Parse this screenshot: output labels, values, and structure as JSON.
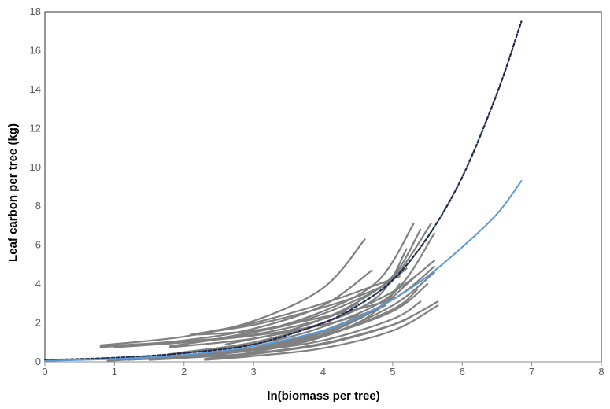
{
  "chart_data": {
    "type": "line",
    "title": "",
    "xlabel": "ln(biomass per tree)",
    "ylabel": "Leaf carbon per tree (kg)",
    "xlim": [
      0,
      8
    ],
    "ylim": [
      0,
      18
    ],
    "x_ticks": [
      "0",
      "1",
      "2",
      "3",
      "4",
      "5",
      "6",
      "7",
      "8"
    ],
    "y_ticks": [
      "0",
      "2",
      "4",
      "6",
      "8",
      "10",
      "12",
      "14",
      "16",
      "18"
    ],
    "grid": false,
    "legend": "none",
    "colors": {
      "individual": "#808080",
      "fitted_blue": "#5b9bd5",
      "fitted_dashed": "#1f2a4d"
    },
    "series": [
      {
        "style": "dashed",
        "color": "#1f2a4d",
        "x": [
          0,
          1,
          2,
          3,
          4,
          4.5,
          5,
          5.5,
          6,
          6.5,
          6.85
        ],
        "y": [
          0.1,
          0.21,
          0.45,
          0.9,
          2.0,
          2.9,
          4.2,
          6.4,
          9.5,
          13.8,
          17.5
        ]
      },
      {
        "style": "solid",
        "color": "#5b9bd5",
        "x": [
          0,
          1,
          2,
          3,
          4,
          4.5,
          5,
          5.5,
          6,
          6.5,
          6.85
        ],
        "y": [
          0.05,
          0.15,
          0.35,
          0.8,
          1.6,
          2.3,
          3.2,
          4.4,
          5.9,
          7.6,
          9.3
        ]
      },
      {
        "x": [
          0.8,
          2.0,
          3.0,
          4.0,
          4.6
        ],
        "y": [
          0.85,
          1.3,
          2.1,
          3.8,
          6.3
        ]
      },
      {
        "x": [
          0.8,
          2.0,
          3.0,
          4.0,
          4.7
        ],
        "y": [
          0.75,
          1.1,
          1.7,
          2.9,
          4.7
        ]
      },
      {
        "x": [
          0.8,
          2.0,
          3.0,
          4.0,
          4.5
        ],
        "y": [
          0.8,
          1.05,
          1.4,
          2.2,
          3.0
        ]
      },
      {
        "x": [
          1.0,
          2.0,
          3.0,
          4.0,
          4.8
        ],
        "y": [
          0.75,
          1.0,
          1.35,
          1.9,
          2.7
        ]
      },
      {
        "x": [
          1.8,
          3.0,
          4.0,
          4.8,
          5.3
        ],
        "y": [
          0.8,
          1.5,
          2.6,
          4.2,
          7.1
        ]
      },
      {
        "x": [
          1.8,
          3.0,
          4.0,
          4.8,
          5.2
        ],
        "y": [
          0.75,
          1.2,
          2.0,
          3.4,
          5.8
        ]
      },
      {
        "x": [
          2.1,
          3.0,
          4.0,
          4.8,
          5.2
        ],
        "y": [
          1.4,
          1.9,
          2.8,
          3.8,
          4.8
        ]
      },
      {
        "x": [
          2.2,
          3.0,
          4.0,
          4.8,
          5.1
        ],
        "y": [
          1.45,
          2.0,
          3.0,
          4.0,
          4.4
        ]
      },
      {
        "x": [
          2.2,
          3.0,
          4.0,
          4.8,
          5.0
        ],
        "y": [
          1.4,
          1.6,
          2.3,
          3.0,
          3.3
        ]
      },
      {
        "x": [
          1.8,
          3.0,
          4.0,
          5.0,
          5.6
        ],
        "y": [
          0.4,
          0.9,
          1.8,
          3.5,
          6.6
        ]
      },
      {
        "x": [
          2.0,
          3.0,
          4.0,
          5.0,
          5.6
        ],
        "y": [
          0.5,
          1.0,
          2.0,
          3.6,
          5.2
        ]
      },
      {
        "x": [
          2.3,
          3.0,
          4.0,
          5.0,
          5.6
        ],
        "y": [
          0.15,
          0.5,
          1.3,
          2.9,
          4.6
        ]
      },
      {
        "x": [
          2.3,
          3.0,
          4.0,
          5.0,
          5.65
        ],
        "y": [
          0.1,
          0.4,
          0.9,
          1.9,
          3.1
        ]
      },
      {
        "x": [
          2.3,
          3.0,
          4.0,
          5.0,
          5.65
        ],
        "y": [
          0.1,
          0.3,
          0.7,
          1.6,
          2.9
        ]
      },
      {
        "x": [
          2.4,
          3.0,
          4.0,
          5.0,
          5.6
        ],
        "y": [
          0.3,
          0.7,
          1.6,
          3.2,
          4.9
        ]
      },
      {
        "x": [
          2.6,
          3.5,
          4.3,
          5.0,
          5.4
        ],
        "y": [
          0.9,
          1.6,
          2.7,
          4.4,
          6.8
        ]
      },
      {
        "x": [
          2.5,
          3.5,
          4.3,
          5.0,
          5.55
        ],
        "y": [
          1.2,
          1.9,
          2.9,
          4.3,
          7.1
        ]
      },
      {
        "x": [
          1.3,
          2.0,
          3.0,
          4.0,
          5.0,
          5.4
        ],
        "y": [
          0.15,
          0.35,
          0.6,
          1.1,
          2.2,
          3.1
        ]
      },
      {
        "x": [
          1.5,
          2.0,
          3.0,
          4.0,
          5.0,
          5.3
        ],
        "y": [
          0.1,
          0.2,
          0.45,
          0.95,
          1.9,
          2.4
        ]
      },
      {
        "x": [
          1.2,
          2.0,
          3.0,
          4.0,
          5.0,
          5.35
        ],
        "y": [
          0.1,
          0.25,
          0.6,
          1.3,
          2.7,
          3.7
        ]
      },
      {
        "x": [
          0.9,
          2.0,
          3.0,
          4.0,
          4.9
        ],
        "y": [
          0.05,
          0.3,
          0.7,
          1.5,
          2.9
        ]
      },
      {
        "x": [
          1.2,
          2.0,
          3.0,
          4.0,
          5.0,
          5.5
        ],
        "y": [
          0.1,
          0.3,
          0.65,
          1.35,
          2.6,
          4.0
        ]
      },
      {
        "x": [
          1.6,
          2.5,
          3.5,
          4.5,
          5.3
        ],
        "y": [
          0.25,
          0.5,
          1.0,
          2.0,
          4.3
        ]
      },
      {
        "x": [
          2.1,
          3.0,
          4.0,
          4.8,
          5.1
        ],
        "y": [
          0.3,
          0.6,
          1.4,
          2.8,
          4.0
        ]
      }
    ]
  }
}
